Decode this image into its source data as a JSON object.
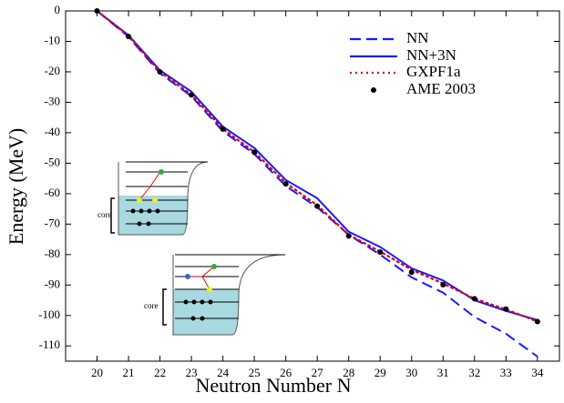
{
  "chart_data": {
    "type": "line",
    "xlabel": "Neutron Number N",
    "ylabel": "Energy (MeV)",
    "x": [
      20,
      21,
      22,
      23,
      24,
      25,
      26,
      27,
      28,
      29,
      30,
      31,
      32,
      33,
      34
    ],
    "series": [
      {
        "name": "NN",
        "color": "#1a1aff",
        "style": "dashed",
        "values": [
          0,
          -8.5,
          -20.5,
          -28,
          -39.5,
          -47,
          -57.5,
          -64.5,
          -73.5,
          -80,
          -87.5,
          -92.5,
          -100.5,
          -106,
          -113.5
        ]
      },
      {
        "name": "NN+3N",
        "color": "#1a1aff",
        "style": "solid",
        "values": [
          0,
          -8,
          -19.5,
          -26.5,
          -38,
          -45,
          -55.5,
          -61.5,
          -72.5,
          -77.5,
          -84.5,
          -88.5,
          -95,
          -98.5,
          -101.5
        ]
      },
      {
        "name": "GXPF1a",
        "color": "#e00000",
        "style": "dotted",
        "values": [
          0,
          -8.3,
          -20,
          -27.5,
          -38.8,
          -46.3,
          -56.5,
          -63.8,
          -73.5,
          -79,
          -85,
          -89.5,
          -94.5,
          -98,
          -102
        ]
      },
      {
        "name": "AME 2003",
        "color": "#000000",
        "style": "points",
        "values": [
          0,
          -8.4,
          -20,
          -27.6,
          -38.8,
          -46.4,
          -56.8,
          -64.1,
          -73.9,
          -79.2,
          -85.8,
          -89.9,
          -94.5,
          -97.9,
          -102
        ]
      }
    ],
    "xlim": [
      19,
      34.7
    ],
    "ylim": [
      -115,
      0
    ],
    "xticks": [
      20,
      21,
      22,
      23,
      24,
      25,
      26,
      27,
      28,
      29,
      30,
      31,
      32,
      33,
      34
    ],
    "yticks": [
      0,
      -10,
      -20,
      -30,
      -40,
      -50,
      -60,
      -70,
      -80,
      -90,
      -100,
      -110
    ],
    "annotations": [
      "core",
      "core"
    ]
  }
}
